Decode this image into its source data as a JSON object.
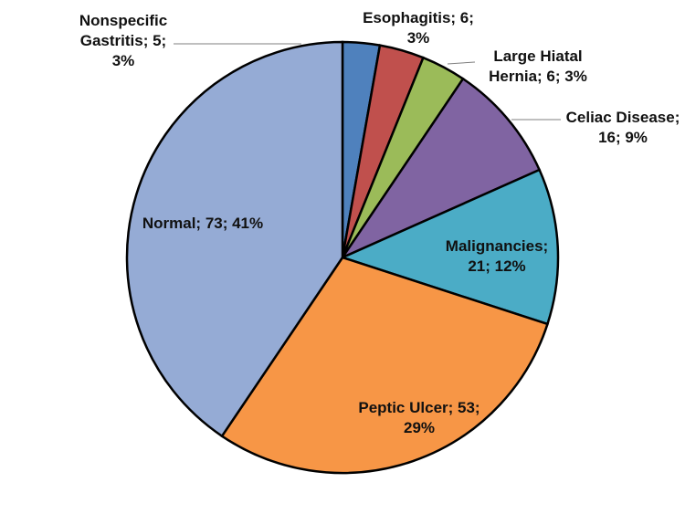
{
  "chart_data": {
    "type": "pie",
    "title": "",
    "start_angle_deg": 0,
    "direction": "clockwise",
    "slices": [
      {
        "name": "Nonspecific Gastritis",
        "value": 5,
        "percent": "3%",
        "color": "#4F81BD",
        "label_lines": [
          "Nonspecific",
          "Gastritis; 5;",
          "3%"
        ]
      },
      {
        "name": "Esophagitis",
        "value": 6,
        "percent": "3%",
        "color": "#C0504D",
        "label_lines": [
          "Esophagitis; 6;",
          "3%"
        ]
      },
      {
        "name": "Large Hiatal Hernia",
        "value": 6,
        "percent": "3%",
        "color": "#9BBB59",
        "label_lines": [
          "Large Hiatal",
          "Hernia; 6; 3%"
        ]
      },
      {
        "name": "Celiac Disease",
        "value": 16,
        "percent": "9%",
        "color": "#8064A2",
        "label_lines": [
          "Celiac Disease;",
          "16; 9%"
        ]
      },
      {
        "name": "Malignancies",
        "value": 21,
        "percent": "12%",
        "color": "#4BACC6",
        "label_lines": [
          "Malignancies;",
          "21; 12%"
        ]
      },
      {
        "name": "Peptic Ulcer",
        "value": 53,
        "percent": "29%",
        "color": "#F79646",
        "label_lines": [
          "Peptic Ulcer; 53;",
          "29%"
        ]
      },
      {
        "name": "Normal",
        "value": 73,
        "percent": "41%",
        "color": "#95ABD5",
        "label_lines": [
          "Normal; 73; 41%"
        ]
      }
    ]
  }
}
